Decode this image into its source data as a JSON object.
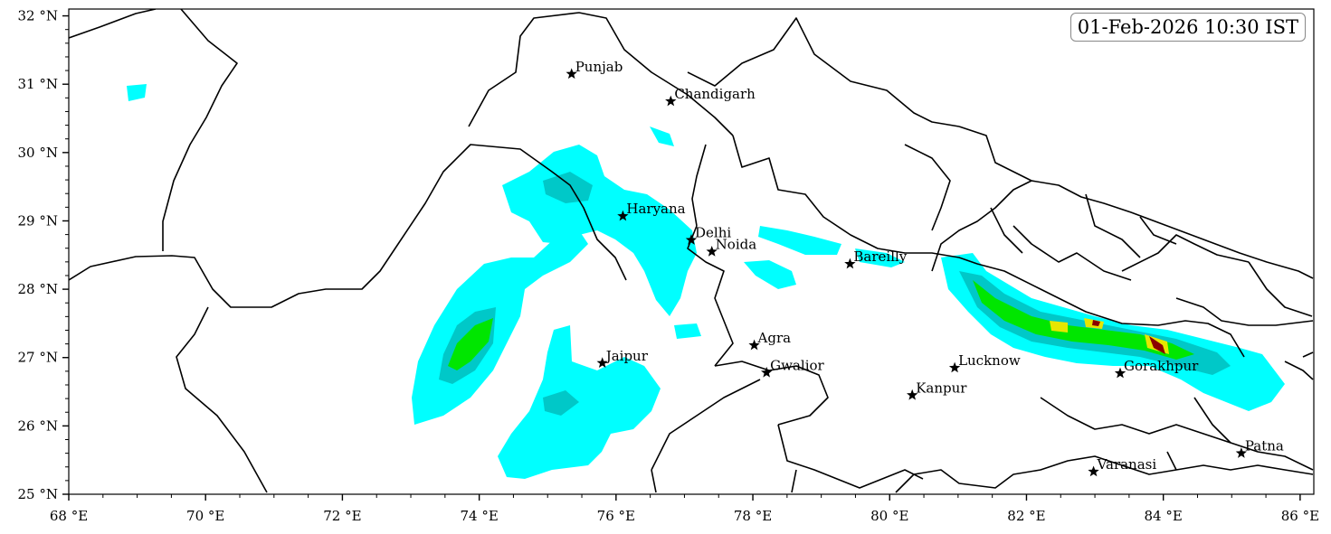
{
  "timestamp": "01-Feb-2026 10:30 IST",
  "x_ticks": [
    {
      "lon": 68,
      "label": "68 °E"
    },
    {
      "lon": 70,
      "label": "70 °E"
    },
    {
      "lon": 72,
      "label": "72 °E"
    },
    {
      "lon": 74,
      "label": "74 °E"
    },
    {
      "lon": 76,
      "label": "76 °E"
    },
    {
      "lon": 78,
      "label": "78 °E"
    },
    {
      "lon": 80,
      "label": "80 °E"
    },
    {
      "lon": 82,
      "label": "82 °E"
    },
    {
      "lon": 84,
      "label": "84 °E"
    },
    {
      "lon": 86,
      "label": "86 °E"
    }
  ],
  "y_ticks": [
    {
      "lat": 25,
      "label": "25 °N"
    },
    {
      "lat": 26,
      "label": "26 °N"
    },
    {
      "lat": 27,
      "label": "27 °N"
    },
    {
      "lat": 28,
      "label": "28 °N"
    },
    {
      "lat": 29,
      "label": "29 °N"
    },
    {
      "lat": 30,
      "label": "30 °N"
    },
    {
      "lat": 31,
      "label": "31 °N"
    },
    {
      "lat": 32,
      "label": "32 °N"
    }
  ],
  "extent": {
    "lon_min": 68,
    "lon_max": 86.2,
    "lat_min": 25,
    "lat_max": 32.1
  },
  "cities": [
    {
      "name": "Punjab",
      "lon": 75.35,
      "lat": 31.15
    },
    {
      "name": "Chandigarh",
      "lon": 76.8,
      "lat": 30.75
    },
    {
      "name": "Haryana",
      "lon": 76.1,
      "lat": 29.07
    },
    {
      "name": "Delhi",
      "lon": 77.1,
      "lat": 28.72
    },
    {
      "name": "Noida",
      "lon": 77.4,
      "lat": 28.55
    },
    {
      "name": "Bareilly",
      "lon": 79.42,
      "lat": 28.37
    },
    {
      "name": "Agra",
      "lon": 78.02,
      "lat": 27.18
    },
    {
      "name": "Jaipur",
      "lon": 75.8,
      "lat": 26.92
    },
    {
      "name": "Gwalior",
      "lon": 78.2,
      "lat": 26.78
    },
    {
      "name": "Lucknow",
      "lon": 80.95,
      "lat": 26.85
    },
    {
      "name": "Kanpur",
      "lon": 80.33,
      "lat": 26.45
    },
    {
      "name": "Gorakhpur",
      "lon": 83.37,
      "lat": 26.77
    },
    {
      "name": "Patna",
      "lon": 85.14,
      "lat": 25.6
    },
    {
      "name": "Varanasi",
      "lon": 82.98,
      "lat": 25.33
    }
  ],
  "colors": {
    "light": "#00ffff",
    "medium": "#00c8c8",
    "heavy": "#00e600",
    "very_heavy": "#e6e600",
    "intense": "#8b0000",
    "border": "#000000"
  }
}
